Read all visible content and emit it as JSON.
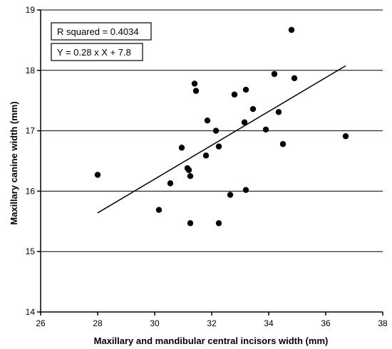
{
  "chart_data": {
    "type": "scatter",
    "title": "",
    "xlabel": "Maxillary and mandibular central incisors width (mm)",
    "ylabel": "Maxillary canine width (mm)",
    "xlim": [
      26,
      38
    ],
    "ylim": [
      14,
      19
    ],
    "xticks": [
      26,
      28,
      30,
      32,
      34,
      36,
      38
    ],
    "yticks": [
      14,
      15,
      16,
      17,
      18,
      19
    ],
    "grid": "horizontal",
    "annotations": [
      "R squared = 0.4034",
      "Y = 0.28 x X + 7.8"
    ],
    "trendline": {
      "slope": 0.28,
      "intercept": 7.8,
      "x_start": 28.0,
      "x_end": 36.7
    },
    "points": [
      {
        "x": 28.0,
        "y": 16.27
      },
      {
        "x": 30.15,
        "y": 15.69
      },
      {
        "x": 30.55,
        "y": 16.13
      },
      {
        "x": 30.95,
        "y": 16.72
      },
      {
        "x": 31.15,
        "y": 16.38
      },
      {
        "x": 31.2,
        "y": 16.35
      },
      {
        "x": 31.25,
        "y": 16.25
      },
      {
        "x": 31.25,
        "y": 15.47
      },
      {
        "x": 31.4,
        "y": 17.78
      },
      {
        "x": 31.45,
        "y": 17.66
      },
      {
        "x": 31.8,
        "y": 16.59
      },
      {
        "x": 31.85,
        "y": 17.17
      },
      {
        "x": 32.15,
        "y": 17.0
      },
      {
        "x": 32.25,
        "y": 16.74
      },
      {
        "x": 32.25,
        "y": 15.47
      },
      {
        "x": 32.65,
        "y": 15.94
      },
      {
        "x": 32.8,
        "y": 17.6
      },
      {
        "x": 33.15,
        "y": 17.14
      },
      {
        "x": 33.2,
        "y": 17.68
      },
      {
        "x": 33.2,
        "y": 16.02
      },
      {
        "x": 33.45,
        "y": 17.36
      },
      {
        "x": 33.9,
        "y": 17.02
      },
      {
        "x": 34.2,
        "y": 17.94
      },
      {
        "x": 34.35,
        "y": 17.31
      },
      {
        "x": 34.5,
        "y": 16.78
      },
      {
        "x": 34.8,
        "y": 18.67
      },
      {
        "x": 34.9,
        "y": 17.87
      },
      {
        "x": 36.7,
        "y": 16.91
      }
    ]
  }
}
